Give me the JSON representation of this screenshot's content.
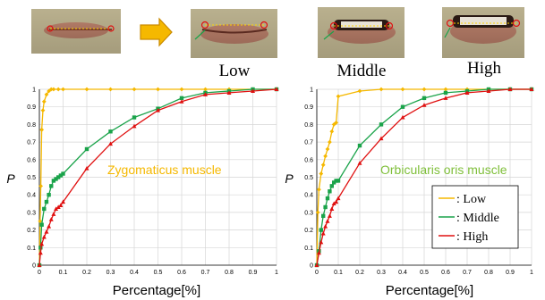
{
  "captions": {
    "low": "Low",
    "middle": "Middle",
    "high": "High"
  },
  "colors": {
    "low": "#f5b800",
    "middle": "#1aa34a",
    "high": "#e01010",
    "arrow": "#f5b800"
  },
  "legend": {
    "low": ": Low",
    "middle": ": Middle",
    "high": ": High"
  },
  "chart_data": [
    {
      "type": "line",
      "annotation": "Zygomaticus muscle",
      "xlabel": "Percentage[%]",
      "ylabel": "P",
      "xlim": [
        0,
        1
      ],
      "ylim": [
        0,
        1
      ],
      "xticks": [
        "0",
        "0.1",
        "0.2",
        "0.3",
        "0.4",
        "0.5",
        "0.6",
        "0.7",
        "0.8",
        "0.9",
        "1"
      ],
      "yticks": [
        "0",
        "0.1",
        "0.2",
        "0.3",
        "0.4",
        "0.5",
        "0.6",
        "0.7",
        "0.8",
        "0.9",
        "1"
      ],
      "grid": true,
      "series": [
        {
          "name": "Low",
          "x": [
            0,
            0.003,
            0.006,
            0.01,
            0.015,
            0.02,
            0.03,
            0.04,
            0.05,
            0.06,
            0.08,
            0.1,
            0.2,
            0.3,
            0.4,
            0.5,
            0.6,
            0.7,
            0.8,
            0.9,
            1.0
          ],
          "y": [
            0,
            0.25,
            0.45,
            0.77,
            0.88,
            0.93,
            0.97,
            0.99,
            1.0,
            1.0,
            1.0,
            1.0,
            1.0,
            1.0,
            1.0,
            1.0,
            1.0,
            1.0,
            1.0,
            1.0,
            1.0
          ]
        },
        {
          "name": "Middle",
          "x": [
            0,
            0.005,
            0.01,
            0.02,
            0.03,
            0.04,
            0.05,
            0.06,
            0.07,
            0.08,
            0.09,
            0.1,
            0.2,
            0.3,
            0.4,
            0.5,
            0.6,
            0.7,
            0.8,
            0.9,
            1.0
          ],
          "y": [
            0,
            0.1,
            0.23,
            0.32,
            0.36,
            0.4,
            0.45,
            0.48,
            0.49,
            0.5,
            0.51,
            0.52,
            0.66,
            0.76,
            0.84,
            0.89,
            0.95,
            0.98,
            0.99,
            1.0,
            1.0
          ]
        },
        {
          "name": "High",
          "x": [
            0,
            0.005,
            0.01,
            0.02,
            0.03,
            0.04,
            0.05,
            0.06,
            0.07,
            0.08,
            0.09,
            0.1,
            0.2,
            0.3,
            0.4,
            0.5,
            0.6,
            0.7,
            0.8,
            0.9,
            1.0
          ],
          "y": [
            0,
            0.07,
            0.12,
            0.16,
            0.19,
            0.22,
            0.26,
            0.29,
            0.32,
            0.33,
            0.34,
            0.36,
            0.55,
            0.69,
            0.79,
            0.88,
            0.93,
            0.97,
            0.98,
            0.99,
            1.0
          ]
        }
      ]
    },
    {
      "type": "line",
      "annotation": "Orbicularis oris muscle",
      "xlabel": "Percentage[%]",
      "ylabel": "P",
      "xlim": [
        0,
        1
      ],
      "ylim": [
        0,
        1
      ],
      "xticks": [
        "0",
        "0.1",
        "0.2",
        "0.3",
        "0.4",
        "0.5",
        "0.6",
        "0.7",
        "0.8",
        "0.9",
        "1"
      ],
      "yticks": [
        "0",
        "0.1",
        "0.2",
        "0.3",
        "0.4",
        "0.5",
        "0.6",
        "0.7",
        "0.8",
        "0.9",
        "1"
      ],
      "grid": true,
      "legend_position": "bottom-right",
      "series": [
        {
          "name": "Low",
          "x": [
            0,
            0.005,
            0.01,
            0.02,
            0.03,
            0.04,
            0.05,
            0.06,
            0.07,
            0.08,
            0.09,
            0.1,
            0.2,
            0.3,
            0.4,
            0.5,
            0.6,
            0.7,
            0.8,
            0.9,
            1.0
          ],
          "y": [
            0,
            0.3,
            0.43,
            0.52,
            0.57,
            0.62,
            0.66,
            0.7,
            0.76,
            0.8,
            0.81,
            0.96,
            0.99,
            1.0,
            1.0,
            1.0,
            1.0,
            1.0,
            1.0,
            1.0,
            1.0
          ]
        },
        {
          "name": "Middle",
          "x": [
            0,
            0.01,
            0.02,
            0.03,
            0.04,
            0.05,
            0.06,
            0.07,
            0.08,
            0.09,
            0.1,
            0.2,
            0.3,
            0.4,
            0.5,
            0.6,
            0.7,
            0.8,
            0.9,
            1.0
          ],
          "y": [
            0,
            0.08,
            0.2,
            0.28,
            0.33,
            0.38,
            0.42,
            0.45,
            0.47,
            0.48,
            0.48,
            0.68,
            0.8,
            0.9,
            0.95,
            0.98,
            0.99,
            1.0,
            1.0,
            1.0
          ]
        },
        {
          "name": "High",
          "x": [
            0,
            0.01,
            0.02,
            0.03,
            0.04,
            0.05,
            0.06,
            0.07,
            0.08,
            0.09,
            0.1,
            0.2,
            0.3,
            0.4,
            0.5,
            0.6,
            0.7,
            0.8,
            0.9,
            1.0
          ],
          "y": [
            0,
            0.07,
            0.13,
            0.18,
            0.22,
            0.25,
            0.28,
            0.32,
            0.35,
            0.36,
            0.38,
            0.58,
            0.72,
            0.84,
            0.91,
            0.95,
            0.98,
            0.99,
            1.0,
            1.0
          ]
        }
      ]
    }
  ]
}
